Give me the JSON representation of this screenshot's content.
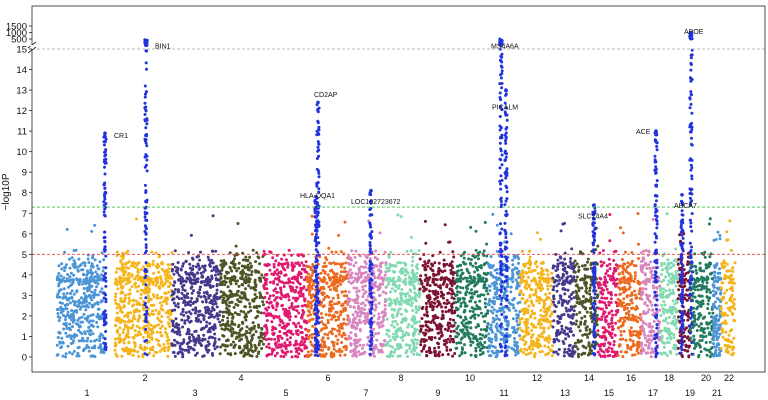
{
  "chart_data": {
    "type": "scatter",
    "subtype": "manhattan",
    "title": "",
    "xlabel": "",
    "ylabel": "−log10P",
    "y_ticks": [
      "0",
      "1",
      "2",
      "3",
      "4",
      "5",
      "6",
      "7",
      "8",
      "9",
      "10",
      "11",
      "12",
      "13",
      "14",
      "15",
      "500",
      "1000",
      "1500"
    ],
    "y_axis_break": {
      "lower_range": [
        0,
        15
      ],
      "upper_range": [
        500,
        1500
      ]
    },
    "threshold_lines": [
      {
        "name": "suggestive",
        "value": 5,
        "color": "#e8403a",
        "style": "dashed"
      },
      {
        "name": "genome-wide",
        "value": 7.3,
        "color": "#3cc63c",
        "style": "dashed"
      },
      {
        "name": "axis-break",
        "value": 15,
        "color": "#bbbbbb",
        "style": "dashed"
      }
    ],
    "chromosomes": [
      {
        "label": "1",
        "color": "#4b94d6"
      },
      {
        "label": "2",
        "color": "#f4b41a"
      },
      {
        "label": "3",
        "color": "#44398c"
      },
      {
        "label": "4",
        "color": "#4b5525"
      },
      {
        "label": "5",
        "color": "#e0196f"
      },
      {
        "label": "6",
        "color": "#ec6a1f"
      },
      {
        "label": "7",
        "color": "#d784bf"
      },
      {
        "label": "8",
        "color": "#81d9b1"
      },
      {
        "label": "9",
        "color": "#7c1332"
      },
      {
        "label": "10",
        "color": "#227a5f"
      },
      {
        "label": "11",
        "color": "#4b94d6"
      },
      {
        "label": "12",
        "color": "#f4b41a"
      },
      {
        "label": "13",
        "color": "#44398c"
      },
      {
        "label": "14",
        "color": "#4b5525"
      },
      {
        "label": "15",
        "color": "#e0196f"
      },
      {
        "label": "16",
        "color": "#ec6a1f"
      },
      {
        "label": "17",
        "color": "#d784bf"
      },
      {
        "label": "18",
        "color": "#81d9b1"
      },
      {
        "label": "19",
        "color": "#7c1332"
      },
      {
        "label": "20",
        "color": "#227a5f"
      },
      {
        "label": "21",
        "color": "#4b94d6"
      },
      {
        "label": "22",
        "color": "#f4b41a"
      }
    ],
    "significant_color": "#2233dd",
    "loci": [
      {
        "gene": "CR1",
        "chr": "1",
        "peak": 10.9,
        "label_y": 10.8
      },
      {
        "gene": "BIN1",
        "chr": "2",
        "peak": 15.2,
        "label_y": 15.2
      },
      {
        "gene": "CD2AP",
        "chr": "6",
        "peak": 12.4,
        "label_y": 12.8
      },
      {
        "gene": "HLA-DQA1",
        "chr": "6",
        "peak": 7.8,
        "label_y": 7.9
      },
      {
        "gene": "LOC102723672",
        "chr": "7",
        "peak": 8.1,
        "label_y": 7.6
      },
      {
        "gene": "MS4A6A",
        "chr": "11",
        "peak": 15.2,
        "label_y": 15.6
      },
      {
        "gene": "PICALM",
        "chr": "11",
        "peak": 13.0,
        "label_y": 12.2
      },
      {
        "gene": "SLC24A4",
        "chr": "14",
        "peak": 7.4,
        "label_y": 6.9
      },
      {
        "gene": "ACE",
        "chr": "17",
        "peak": 11.0,
        "label_y": 11.0
      },
      {
        "gene": "ABCA7",
        "chr": "19",
        "peak": 7.9,
        "label_y": 7.4
      },
      {
        "gene": "APOE",
        "chr": "19",
        "peak": 1000,
        "label_y": 1100
      }
    ]
  }
}
